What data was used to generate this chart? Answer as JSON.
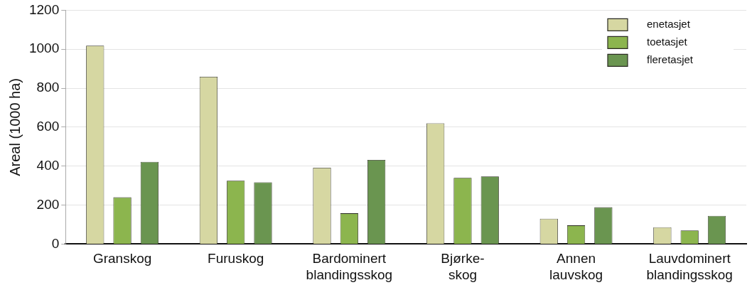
{
  "chart_data": {
    "type": "bar",
    "ylabel": "Areal (1000 ha)",
    "categories": [
      "Granskog",
      "Furuskog",
      "Bardominert\nblandingsskog",
      "Bjørke-\nskog",
      "Annen\nlauvskog",
      "Lauvdominert\nblandingsskog"
    ],
    "series": [
      {
        "name": "enetasjet",
        "color": "#d6d7a2",
        "values": [
          1018,
          859,
          392,
          620,
          130,
          86
        ]
      },
      {
        "name": "toetasjet",
        "color": "#8cb54e",
        "values": [
          240,
          325,
          158,
          340,
          96,
          70
        ]
      },
      {
        "name": "fleretasjet",
        "color": "#6a9550",
        "values": [
          422,
          317,
          432,
          347,
          189,
          145
        ]
      }
    ],
    "ylim": [
      0,
      1200
    ],
    "yticks": [
      0,
      200,
      400,
      600,
      800,
      1000,
      1200
    ],
    "grid": "y",
    "legend": "top right"
  }
}
